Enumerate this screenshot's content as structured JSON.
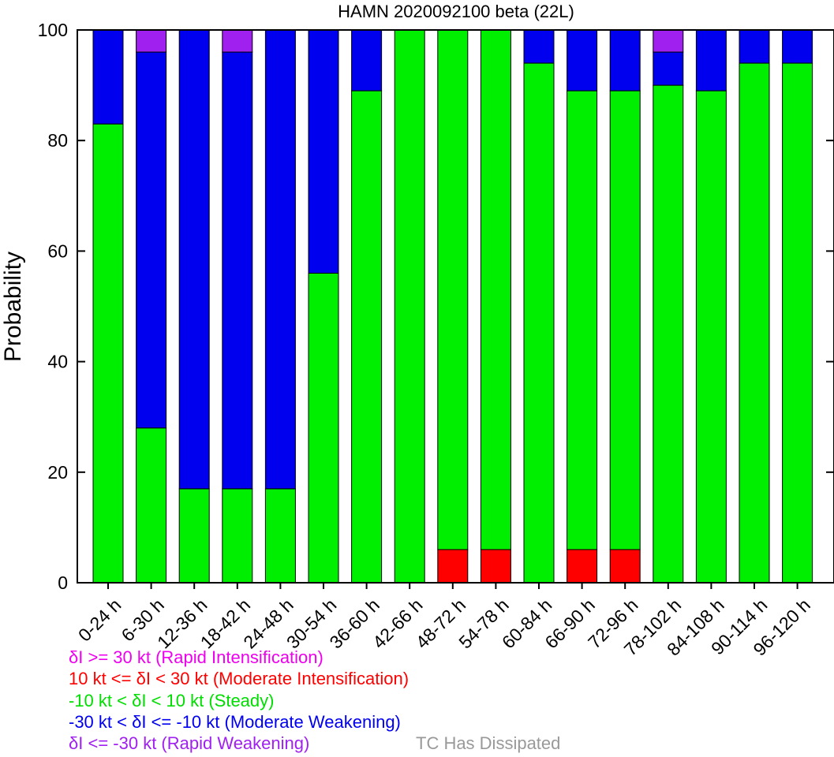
{
  "chart_data": {
    "type": "bar",
    "stacked": true,
    "title": "HAMN 2020092100 beta (22L)",
    "xlabel": "",
    "ylabel": "Probability",
    "ylim": [
      0,
      100
    ],
    "yticks": [
      0,
      20,
      40,
      60,
      80,
      100
    ],
    "grid": false,
    "categories": [
      "0-24 h",
      "6-30 h",
      "12-36 h",
      "18-42 h",
      "24-48 h",
      "30-54 h",
      "36-60 h",
      "42-66 h",
      "48-72 h",
      "54-78 h",
      "60-84 h",
      "66-90 h",
      "72-96 h",
      "78-102 h",
      "84-108 h",
      "90-114 h",
      "96-120 h"
    ],
    "series": [
      {
        "key": "mi",
        "color": "#ff0000",
        "values": [
          0,
          0,
          0,
          0,
          0,
          0,
          0,
          0,
          6,
          6,
          0,
          6,
          6,
          0,
          0,
          0,
          0
        ]
      },
      {
        "key": "steady",
        "color": "#00ee00",
        "values": [
          83,
          28,
          17,
          17,
          17,
          56,
          89,
          100,
          94,
          94,
          94,
          83,
          83,
          90,
          89,
          94,
          94
        ]
      },
      {
        "key": "mw",
        "color": "#0000ee",
        "values": [
          17,
          68,
          83,
          79,
          83,
          44,
          11,
          0,
          0,
          0,
          6,
          11,
          11,
          6,
          11,
          6,
          6
        ]
      },
      {
        "key": "rw",
        "color": "#a020f0",
        "values": [
          0,
          4,
          0,
          4,
          0,
          0,
          0,
          0,
          0,
          0,
          0,
          0,
          0,
          4,
          0,
          0,
          0
        ]
      }
    ],
    "legend": [
      {
        "text": "δI >= 30 kt (Rapid Intensification)",
        "color": "#ee00ee"
      },
      {
        "text": "10 kt <= δI < 30 kt (Moderate Intensification)",
        "color": "#ff0000"
      },
      {
        "text": "-10 kt < δI < 10 kt (Steady)",
        "color": "#00dd00"
      },
      {
        "text": "-30 kt < δI <= -10 kt (Moderate Weakening)",
        "color": "#0000ee"
      },
      {
        "text": "δI <= -30 kt (Rapid Weakening)",
        "color": "#a020f0"
      }
    ],
    "legend_extra": {
      "text": "TC Has Dissipated",
      "color": "#999999"
    }
  }
}
